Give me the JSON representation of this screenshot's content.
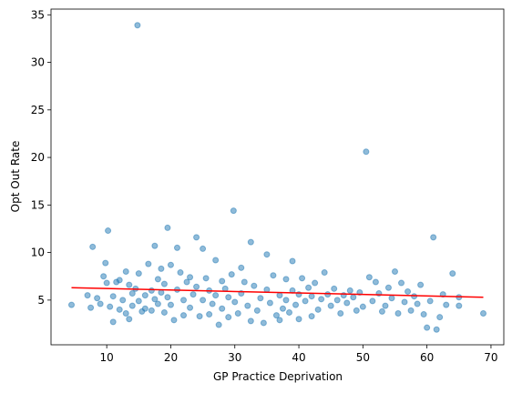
{
  "chart_data": {
    "type": "scatter",
    "x_label": "GP Practice Deprivation",
    "y_label": "Opt Out Rate",
    "xlim": [
      1.3,
      72.0
    ],
    "ylim": [
      0.3,
      35.6
    ],
    "xticks": [
      10,
      20,
      30,
      40,
      50,
      60,
      70
    ],
    "yticks": [
      5,
      10,
      15,
      20,
      25,
      30,
      35
    ],
    "color": "#1f77b4",
    "x": [
      4.5,
      7,
      7.5,
      7.8,
      8.5,
      9,
      9.5,
      9.8,
      10,
      10.2,
      10.5,
      11,
      11,
      11.5,
      12,
      12,
      12.5,
      13,
      13,
      13.5,
      13.5,
      14,
      14,
      14.5,
      14.8,
      15,
      15,
      15.5,
      16,
      16,
      16.5,
      17,
      17,
      17.5,
      17.5,
      18,
      18,
      18.5,
      18.5,
      19,
      19,
      19.5,
      19.5,
      20,
      20,
      20.5,
      21,
      21,
      21.5,
      22,
      22,
      22.5,
      23,
      23,
      23.5,
      24,
      24,
      24.5,
      25,
      25,
      25.5,
      26,
      26,
      26.5,
      27,
      27,
      27.5,
      28,
      28,
      28.5,
      29,
      29,
      29.5,
      29.8,
      30,
      30.5,
      31,
      31,
      31.5,
      32,
      32.5,
      32.5,
      33,
      33.5,
      34,
      34.5,
      35,
      35,
      35.5,
      36,
      36.5,
      37,
      37,
      37.5,
      38,
      38,
      38.5,
      39,
      39,
      39.5,
      40,
      40,
      40.5,
      41,
      41.5,
      42,
      42,
      42.5,
      43,
      43.5,
      44,
      44.5,
      45,
      45.5,
      46,
      46.5,
      47,
      47.5,
      48,
      48.5,
      49,
      49.5,
      50,
      50.5,
      51,
      51.5,
      52,
      52.5,
      53,
      53.5,
      54,
      54.5,
      55,
      55.5,
      56,
      56.5,
      57,
      57.5,
      58,
      58.5,
      59,
      59.5,
      60,
      60.5,
      61,
      61.5,
      62,
      62.5,
      63,
      64,
      65,
      65,
      68.8
    ],
    "values": [
      4.5,
      5.5,
      4.2,
      10.6,
      5.2,
      4.6,
      7.5,
      8.9,
      6.8,
      12.3,
      4.3,
      2.7,
      5.4,
      6.9,
      4.0,
      7.1,
      5.0,
      8.0,
      3.6,
      6.6,
      3.0,
      5.7,
      4.4,
      6.2,
      33.9,
      7.8,
      4.9,
      3.8,
      5.5,
      4.1,
      8.8,
      6.0,
      3.9,
      10.7,
      5.1,
      7.2,
      4.6,
      8.3,
      5.8,
      6.7,
      3.7,
      12.6,
      5.3,
      8.7,
      4.5,
      2.9,
      10.5,
      6.1,
      7.9,
      5.0,
      3.4,
      6.9,
      7.4,
      4.2,
      5.6,
      11.6,
      6.4,
      3.3,
      10.4,
      5.0,
      7.3,
      6.0,
      3.5,
      4.6,
      9.2,
      5.5,
      2.4,
      7.0,
      4.1,
      6.2,
      5.3,
      3.2,
      7.7,
      14.4,
      4.8,
      3.6,
      8.4,
      5.7,
      6.9,
      4.4,
      11.1,
      2.8,
      6.5,
      3.9,
      5.2,
      2.6,
      9.8,
      6.1,
      4.7,
      7.6,
      3.4,
      5.5,
      2.9,
      4.1,
      7.2,
      5.0,
      3.7,
      9.1,
      6.0,
      4.5,
      5.6,
      3.0,
      7.3,
      4.9,
      6.3,
      5.4,
      3.3,
      6.8,
      4.0,
      5.1,
      7.9,
      5.6,
      4.4,
      6.2,
      5.0,
      3.6,
      5.5,
      4.7,
      6.0,
      5.3,
      3.9,
      5.8,
      4.3,
      20.6,
      7.4,
      4.9,
      6.9,
      5.7,
      3.8,
      4.4,
      6.3,
      5.2,
      8.0,
      3.6,
      6.8,
      4.8,
      5.9,
      3.9,
      5.4,
      4.6,
      6.6,
      3.5,
      2.1,
      4.9,
      11.6,
      1.9,
      3.2,
      5.6,
      4.5,
      7.8,
      5.3,
      4.4,
      3.6
    ],
    "trend_line": {
      "color": "red",
      "x": [
        4.5,
        68.8
      ],
      "values": [
        6.3,
        5.3
      ]
    }
  }
}
